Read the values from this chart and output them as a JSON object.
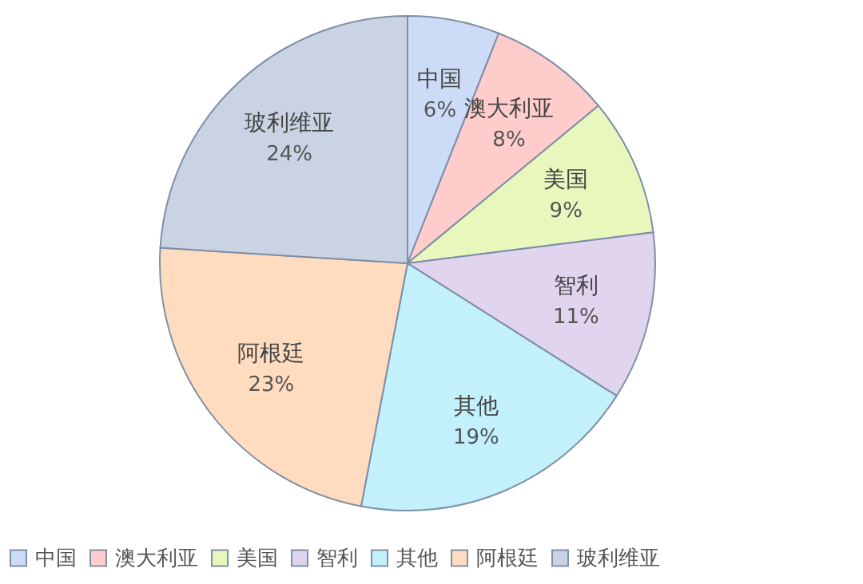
{
  "chart_data": {
    "type": "pie",
    "categories": [
      "中国",
      "澳大利亚",
      "美国",
      "智利",
      "其他",
      "阿根廷",
      "玻利维亚"
    ],
    "values": [
      6,
      8,
      9,
      11,
      19,
      23,
      24
    ],
    "value_labels": [
      "6%",
      "8%",
      "9%",
      "11%",
      "19%",
      "23%",
      "24%"
    ],
    "colors": [
      "#cddcf6",
      "#ffcccc",
      "#e8f8bd",
      "#e0d4ef",
      "#c2f0fb",
      "#ffdcbf",
      "#c9d3e3"
    ],
    "legend": "bottom"
  }
}
